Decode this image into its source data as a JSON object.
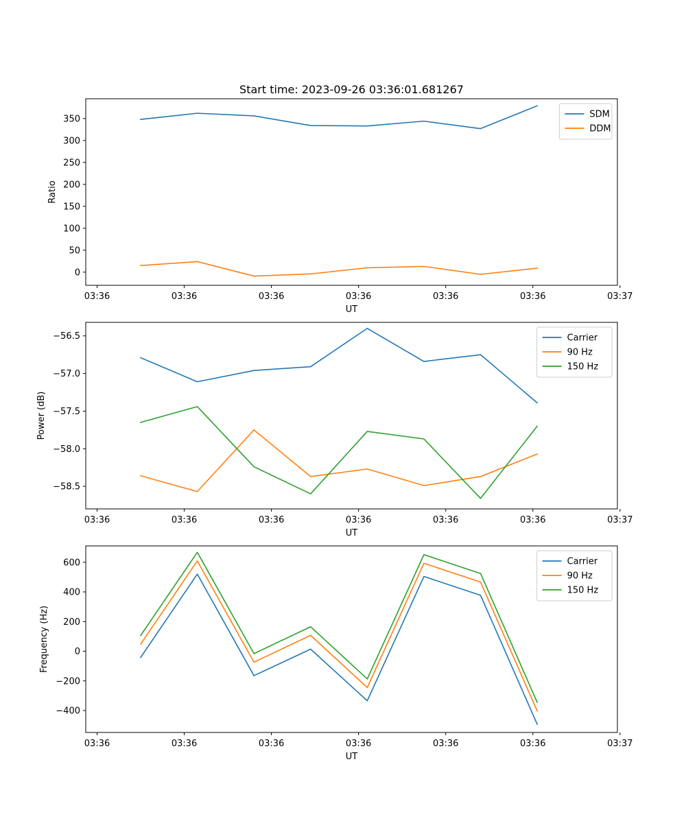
{
  "figure_title": "Start time: 2023-09-26 03:36:01.681267",
  "colors": {
    "blue": "#1f77b4",
    "orange": "#ff7f0e",
    "green": "#2ca02c"
  },
  "chart_data": [
    {
      "type": "line",
      "title": "Start time: 2023-09-26 03:36:01.681267",
      "xlabel": "UT",
      "ylabel": "Ratio",
      "xlim": [
        -0.13,
        5.97
      ],
      "ylim": [
        -30,
        395
      ],
      "x": [
        0.5,
        1.15,
        1.8,
        2.45,
        3.1,
        3.75,
        4.4,
        5.05
      ],
      "xticks": [
        0,
        1,
        2,
        3,
        4,
        5,
        6
      ],
      "xtick_labels": [
        "03:36",
        "03:36",
        "03:36",
        "03:36",
        "03:36",
        "03:36",
        "03:37"
      ],
      "yticks": [
        0,
        50,
        100,
        150,
        200,
        250,
        300,
        350
      ],
      "ytick_labels": [
        "0",
        "50",
        "100",
        "150",
        "200",
        "250",
        "300",
        "350"
      ],
      "legend_position": "top-right",
      "series": [
        {
          "name": "SDM",
          "color": "#1f77b4",
          "values": [
            348,
            362,
            356,
            334,
            333,
            344,
            327,
            379
          ]
        },
        {
          "name": "DDM",
          "color": "#ff7f0e",
          "values": [
            15,
            24,
            -9,
            -4,
            10,
            13,
            -5,
            9
          ]
        }
      ]
    },
    {
      "type": "line",
      "title": "",
      "xlabel": "UT",
      "ylabel": "Power (dB)",
      "xlim": [
        -0.13,
        5.97
      ],
      "ylim": [
        -58.8,
        -56.32
      ],
      "x": [
        0.5,
        1.15,
        1.8,
        2.45,
        3.1,
        3.75,
        4.4,
        5.05
      ],
      "xticks": [
        0,
        1,
        2,
        3,
        4,
        5,
        6
      ],
      "xtick_labels": [
        "03:36",
        "03:36",
        "03:36",
        "03:36",
        "03:36",
        "03:36",
        "03:37"
      ],
      "yticks": [
        -58.5,
        -58.0,
        -57.5,
        -57.0,
        -56.5
      ],
      "ytick_labels": [
        "−58.5",
        "−58.0",
        "−57.5",
        "−57.0",
        "−56.5"
      ],
      "legend_position": "top-right",
      "series": [
        {
          "name": "Carrier",
          "color": "#1f77b4",
          "values": [
            -56.79,
            -57.11,
            -56.96,
            -56.91,
            -56.4,
            -56.84,
            -56.75,
            -57.39
          ]
        },
        {
          "name": "90 Hz",
          "color": "#ff7f0e",
          "values": [
            -58.36,
            -58.57,
            -57.75,
            -58.37,
            -58.27,
            -58.49,
            -58.37,
            -58.07
          ]
        },
        {
          "name": "150 Hz",
          "color": "#2ca02c",
          "values": [
            -57.65,
            -57.44,
            -58.24,
            -58.6,
            -57.77,
            -57.87,
            -58.66,
            -57.7
          ]
        }
      ]
    },
    {
      "type": "line",
      "title": "",
      "xlabel": "UT",
      "ylabel": "Frequency (Hz)",
      "xlim": [
        -0.13,
        5.97
      ],
      "ylim": [
        -548,
        710
      ],
      "x": [
        0.5,
        1.15,
        1.8,
        2.45,
        3.1,
        3.75,
        4.4,
        5.05
      ],
      "xticks": [
        0,
        1,
        2,
        3,
        4,
        5,
        6
      ],
      "xtick_labels": [
        "03:36",
        "03:36",
        "03:36",
        "03:36",
        "03:36",
        "03:36",
        "03:37"
      ],
      "yticks": [
        -400,
        -200,
        0,
        200,
        400,
        600
      ],
      "ytick_labels": [
        "−400",
        "−200",
        "0",
        "200",
        "400",
        "600"
      ],
      "legend_position": "top-right",
      "series": [
        {
          "name": "Carrier",
          "color": "#1f77b4",
          "values": [
            -42,
            520,
            -165,
            14,
            -334,
            504,
            377,
            -493
          ]
        },
        {
          "name": "90 Hz",
          "color": "#ff7f0e",
          "values": [
            48,
            609,
            -74,
            107,
            -245,
            593,
            466,
            -403
          ]
        },
        {
          "name": "150 Hz",
          "color": "#2ca02c",
          "values": [
            106,
            667,
            -16,
            165,
            -187,
            651,
            524,
            -345
          ]
        }
      ]
    }
  ]
}
